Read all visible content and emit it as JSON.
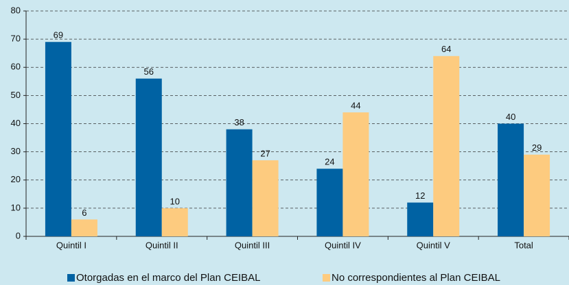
{
  "chart_data": {
    "type": "bar",
    "categories": [
      "Quintil I",
      "Quintil II",
      "Quintil III",
      "Quintil IV",
      "Quintil V",
      "Total"
    ],
    "series": [
      {
        "name": "Otorgadas en el marco del Plan CEIBAL",
        "color": "#0062a3",
        "values": [
          69,
          56,
          38,
          24,
          12,
          40
        ]
      },
      {
        "name": "No correspondientes al Plan CEIBAL",
        "color": "#fdcb7f",
        "values": [
          6,
          10,
          27,
          44,
          64,
          29
        ]
      }
    ],
    "ylim": [
      0,
      80
    ],
    "yticks": [
      0,
      10,
      20,
      30,
      40,
      50,
      60,
      70,
      80
    ],
    "grid": true,
    "legend": "bottom"
  }
}
